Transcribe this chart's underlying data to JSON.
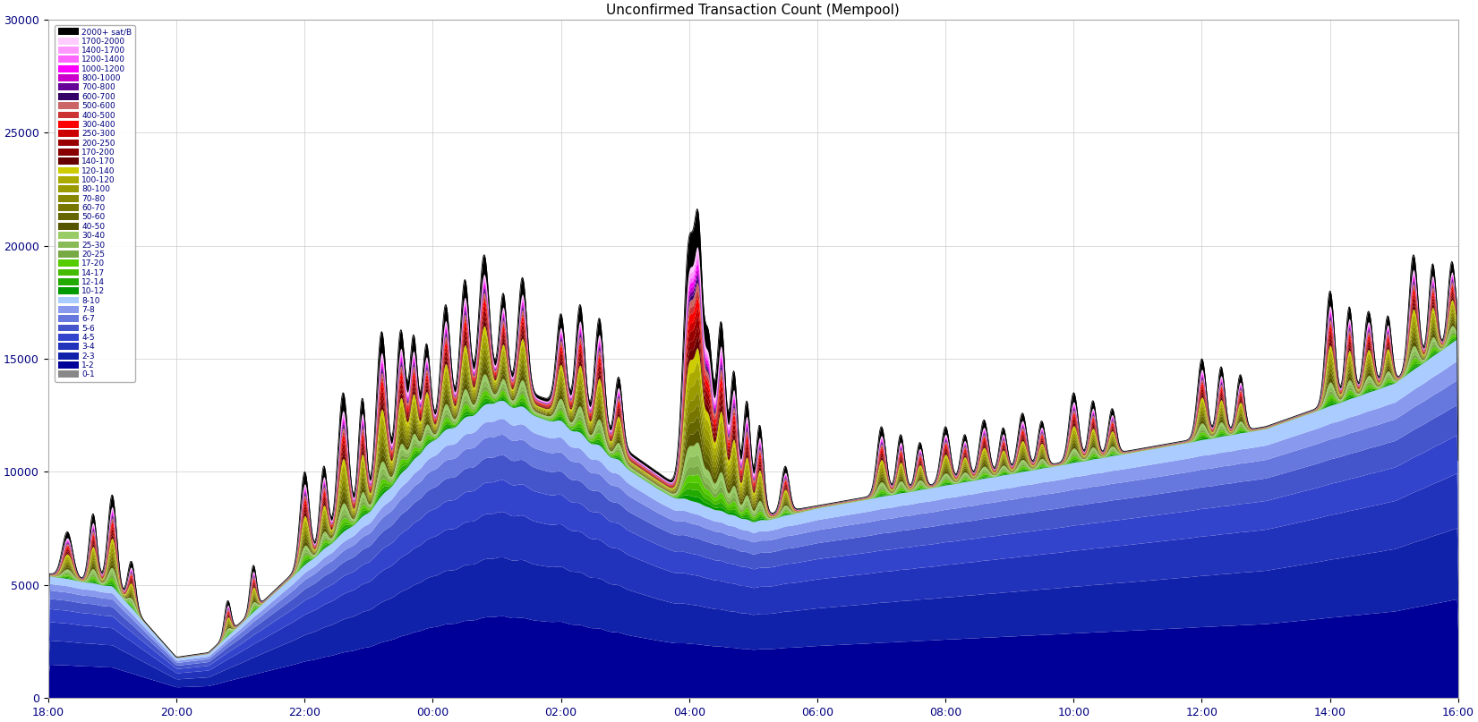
{
  "title": "Unconfirmed Transaction Count (Mempool)",
  "title_fontsize": 11,
  "xlim": [
    0,
    1
  ],
  "ylim": [
    0,
    30000
  ],
  "yticks": [
    0,
    5000,
    10000,
    15000,
    20000,
    25000,
    30000
  ],
  "xtick_labels": [
    "18:00",
    "20:00",
    "22:00",
    "00:00",
    "02:00",
    "04:00",
    "06:00",
    "08:00",
    "10:00",
    "12:00",
    "14:00",
    "16:00"
  ],
  "background_color": "#ffffff",
  "legend_labels": [
    "2000+ sat/B",
    "1700-2000",
    "1400-1700",
    "1200-1400",
    "1000-1200",
    "800-1000",
    "700-800",
    "600-700",
    "500-600",
    "400-500",
    "300-400",
    "250-300",
    "200-250",
    "170-200",
    "140-170",
    "120-140",
    "100-120",
    "80-100",
    "70-80",
    "60-70",
    "50-60",
    "40-50",
    "30-40",
    "25-30",
    "20-25",
    "17-20",
    "14-17",
    "12-14",
    "10-12",
    "8-10",
    "7-8",
    "6-7",
    "5-6",
    "4-5",
    "3-4",
    "2-3",
    "1-2",
    "0-1"
  ],
  "layer_colors_top_to_bottom": [
    "#000000",
    "#ffccff",
    "#ff99ff",
    "#ff66ff",
    "#ff00ff",
    "#cc00cc",
    "#660099",
    "#330066",
    "#cc6666",
    "#cc3333",
    "#ff0000",
    "#cc0000",
    "#990000",
    "#880000",
    "#660000",
    "#cccc00",
    "#aaaa00",
    "#999900",
    "#888800",
    "#777700",
    "#666600",
    "#555500",
    "#99cc66",
    "#88bb55",
    "#77aa44",
    "#55cc00",
    "#44bb00",
    "#22aa00",
    "#009900",
    "#aaccff",
    "#8899ee",
    "#6677dd",
    "#4455cc",
    "#3344cc",
    "#2233bb",
    "#1122aa",
    "#000099",
    "#888888"
  ],
  "figsize": [
    16.51,
    8.07
  ],
  "dpi": 100
}
